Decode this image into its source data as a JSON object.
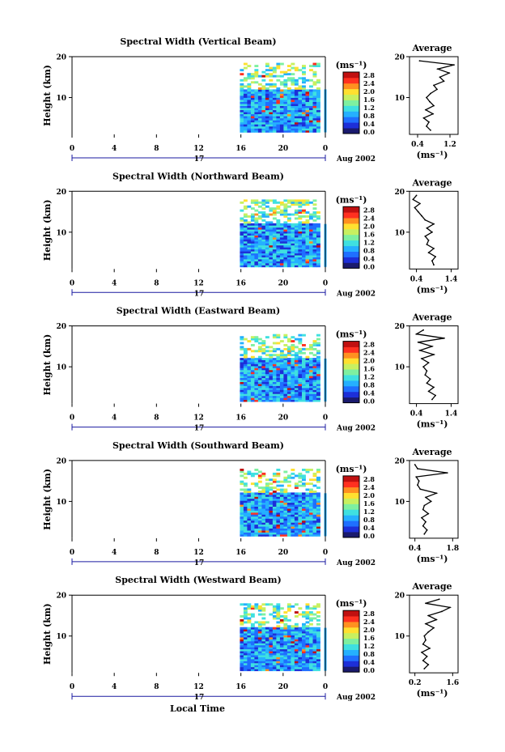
{
  "figure": {
    "bottom_label": "Local Time",
    "date_label": "Aug 2002",
    "day_label": "17",
    "ylabel": "Height (km)",
    "colorbar_unit": "(ms⁻¹)",
    "colorbar_ticks": [
      "2.8",
      "2.4",
      "2.0",
      "1.6",
      "1.2",
      "0.8",
      "0.4",
      "0.0"
    ],
    "profile_title": "Average",
    "profile_xlabel": "(ms⁻¹)",
    "colormap": [
      "#1a1a6e",
      "#1d2fd8",
      "#1f6fff",
      "#25b0ff",
      "#3fe0e0",
      "#7ef0a0",
      "#c8f060",
      "#ffe030",
      "#ff9020",
      "#ff3020",
      "#c01010"
    ]
  },
  "chart_data": [
    {
      "type": "heatmap",
      "title": "Spectral Width (Vertical Beam)",
      "xlabel": "Local Time",
      "ylabel": "Height (km)",
      "x_ticks": [
        "0",
        "4",
        "8",
        "12",
        "16",
        "20",
        "0"
      ],
      "y_ticks": [
        "20",
        "10"
      ],
      "xlim": [
        0,
        24
      ],
      "ylim": [
        1,
        20
      ],
      "data_window": {
        "x_start": 15.9,
        "x_end": 23.5,
        "y_start": 1.5,
        "y_end": 18.5
      },
      "colorbar": {
        "label": "(ms⁻¹)",
        "range": [
          0.0,
          3.0
        ]
      },
      "profile": {
        "title": "Average",
        "xlabel": "(ms⁻¹)",
        "x_ticks": [
          "0.4",
          "1.2"
        ],
        "xlim": [
          0.2,
          1.4
        ],
        "y_ticks": [
          "20",
          "10"
        ],
        "heights": [
          2,
          3,
          4,
          5,
          6,
          7,
          8,
          9,
          10,
          11,
          12,
          13,
          14,
          15,
          16,
          17,
          18,
          19
        ],
        "values": [
          0.72,
          0.62,
          0.68,
          0.55,
          0.78,
          0.6,
          0.8,
          0.7,
          0.62,
          0.72,
          0.88,
          0.8,
          1.05,
          0.95,
          1.18,
          0.9,
          1.3,
          0.45
        ]
      }
    },
    {
      "type": "heatmap",
      "title": "Spectral Width (Northward Beam)",
      "xlabel": "Local Time",
      "ylabel": "Height (km)",
      "x_ticks": [
        "0",
        "4",
        "8",
        "12",
        "16",
        "20",
        "0"
      ],
      "y_ticks": [
        "20",
        "10"
      ],
      "xlim": [
        0,
        24
      ],
      "ylim": [
        1,
        20
      ],
      "data_window": {
        "x_start": 15.9,
        "x_end": 23.5,
        "y_start": 1.5,
        "y_end": 18.0
      },
      "colorbar": {
        "label": "(ms⁻¹)",
        "range": [
          0.0,
          3.0
        ]
      },
      "profile": {
        "title": "Average",
        "xlabel": "(ms⁻¹)",
        "x_ticks": [
          "0.4",
          "1.4"
        ],
        "xlim": [
          0.2,
          1.6
        ],
        "y_ticks": [
          "20",
          "10"
        ],
        "heights": [
          2,
          3,
          4,
          5,
          6,
          7,
          8,
          9,
          10,
          11,
          12,
          13,
          14,
          15,
          16,
          17,
          18,
          19
        ],
        "values": [
          0.9,
          0.85,
          0.95,
          0.75,
          0.9,
          0.7,
          0.75,
          0.65,
          0.85,
          0.7,
          0.9,
          0.65,
          0.55,
          0.45,
          0.35,
          0.5,
          0.3,
          0.4
        ]
      }
    },
    {
      "type": "heatmap",
      "title": "Spectral Width (Eastward Beam)",
      "xlabel": "Local Time",
      "ylabel": "Height (km)",
      "x_ticks": [
        "0",
        "4",
        "8",
        "12",
        "16",
        "20",
        "0"
      ],
      "y_ticks": [
        "20",
        "10"
      ],
      "xlim": [
        0,
        24
      ],
      "ylim": [
        1,
        20
      ],
      "data_window": {
        "x_start": 15.9,
        "x_end": 23.5,
        "y_start": 1.5,
        "y_end": 18.0
      },
      "colorbar": {
        "label": "(ms⁻¹)",
        "range": [
          0.0,
          3.0
        ]
      },
      "profile": {
        "title": "Average",
        "xlabel": "(ms⁻¹)",
        "x_ticks": [
          "0.4",
          "1.4"
        ],
        "xlim": [
          0.2,
          1.6
        ],
        "y_ticks": [
          "20",
          "10"
        ],
        "heights": [
          2,
          3,
          4,
          5,
          6,
          7,
          8,
          9,
          10,
          11,
          12,
          13,
          14,
          15,
          16,
          17,
          18,
          19
        ],
        "values": [
          0.85,
          0.95,
          0.75,
          0.9,
          0.7,
          0.8,
          0.65,
          0.7,
          0.6,
          0.75,
          0.55,
          0.9,
          0.5,
          0.85,
          0.45,
          1.2,
          0.4,
          0.6
        ]
      }
    },
    {
      "type": "heatmap",
      "title": "Spectral Width (Southward Beam)",
      "xlabel": "Local Time",
      "ylabel": "Height (km)",
      "x_ticks": [
        "0",
        "4",
        "8",
        "12",
        "16",
        "20",
        "0"
      ],
      "y_ticks": [
        "20",
        "10"
      ],
      "xlim": [
        0,
        24
      ],
      "ylim": [
        1,
        20
      ],
      "data_window": {
        "x_start": 15.9,
        "x_end": 23.5,
        "y_start": 1.5,
        "y_end": 18.0
      },
      "colorbar": {
        "label": "(ms⁻¹)",
        "range": [
          0.0,
          3.0
        ]
      },
      "profile": {
        "title": "Average",
        "xlabel": "(ms⁻¹)",
        "x_ticks": [
          "0.4",
          "1.8"
        ],
        "xlim": [
          0.2,
          2.0
        ],
        "y_ticks": [
          "20",
          "10"
        ],
        "heights": [
          2,
          3,
          4,
          5,
          6,
          7,
          8,
          9,
          10,
          11,
          12,
          13,
          14,
          15,
          16,
          17,
          18,
          19
        ],
        "values": [
          0.75,
          0.85,
          0.7,
          0.8,
          0.65,
          0.9,
          0.7,
          0.75,
          1.0,
          0.8,
          1.2,
          0.6,
          0.5,
          0.55,
          0.45,
          1.6,
          0.5,
          0.4
        ]
      }
    },
    {
      "type": "heatmap",
      "title": "Spectral Width (Westward Beam)",
      "xlabel": "Local Time",
      "ylabel": "Height (km)",
      "x_ticks": [
        "0",
        "4",
        "8",
        "12",
        "16",
        "20",
        "0"
      ],
      "y_ticks": [
        "20",
        "10"
      ],
      "xlim": [
        0,
        24
      ],
      "ylim": [
        1,
        20
      ],
      "data_window": {
        "x_start": 15.9,
        "x_end": 23.5,
        "y_start": 1.5,
        "y_end": 18.0
      },
      "colorbar": {
        "label": "(ms⁻¹)",
        "range": [
          0.0,
          3.0
        ]
      },
      "profile": {
        "title": "Average",
        "xlabel": "(ms⁻¹)",
        "x_ticks": [
          "0.2",
          "1.6"
        ],
        "xlim": [
          0.0,
          1.8
        ],
        "y_ticks": [
          "20",
          "10"
        ],
        "heights": [
          2,
          3,
          4,
          5,
          6,
          7,
          8,
          9,
          10,
          11,
          12,
          13,
          14,
          15,
          16,
          17,
          18,
          19
        ],
        "values": [
          0.55,
          0.7,
          0.5,
          0.65,
          0.45,
          0.75,
          0.5,
          0.6,
          0.55,
          0.7,
          0.9,
          0.6,
          1.0,
          0.7,
          1.2,
          1.5,
          0.6,
          1.1
        ]
      }
    }
  ]
}
